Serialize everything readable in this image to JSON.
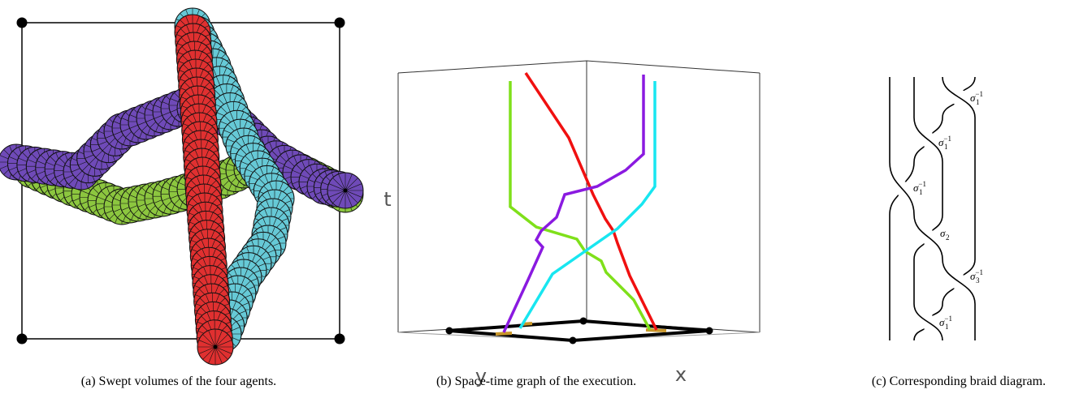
{
  "panels": [
    {
      "caption": "(a) Swept volumes of the four agents."
    },
    {
      "caption": "(b) Space-time graph of the execution.",
      "axis_labels": {
        "t": "t",
        "y": "y",
        "x": "x"
      }
    },
    {
      "caption": "(c) Corresponding braid diagram.",
      "braid_labels": [
        {
          "base": "σ",
          "sub": "1",
          "sup": "−1"
        },
        {
          "base": "σ",
          "sub": "1",
          "sup": "−1"
        },
        {
          "base": "σ",
          "sub": "1",
          "sup": "−1"
        },
        {
          "base": "σ",
          "sub": "2"
        },
        {
          "base": "σ",
          "sub": "3",
          "sup": "−1"
        },
        {
          "base": "σ",
          "sub": "1",
          "sup": "−1"
        }
      ]
    }
  ]
}
